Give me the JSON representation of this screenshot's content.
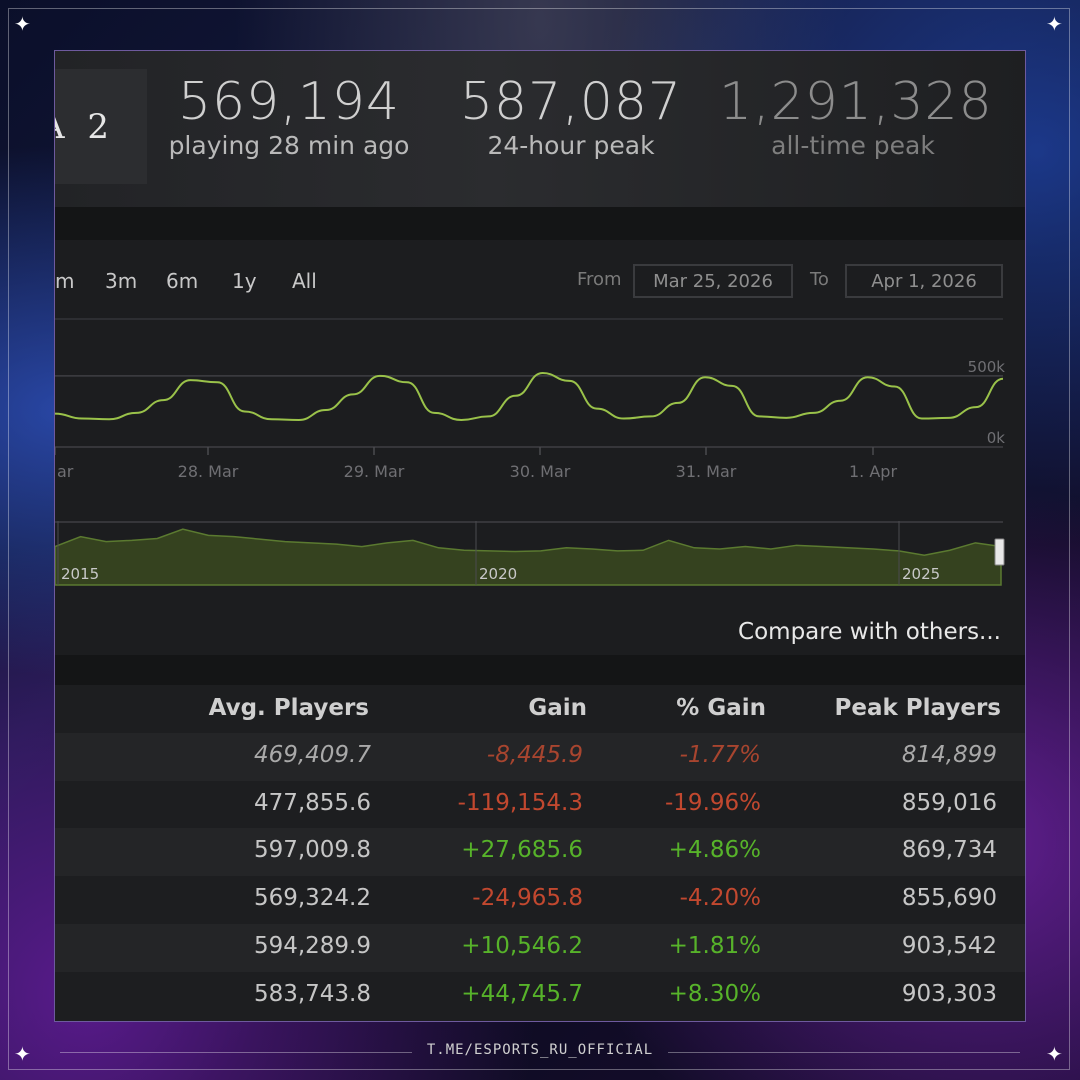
{
  "header": {
    "game_logo_text": "A 2",
    "stats": [
      {
        "value": "569,194",
        "label": "playing 28 min ago"
      },
      {
        "value": "587,087",
        "label": "24-hour peak"
      },
      {
        "value": "1,291,328",
        "label": "all-time peak"
      }
    ]
  },
  "chart_controls": {
    "zoom_options": [
      "m",
      "3m",
      "6m",
      "1y",
      "All"
    ],
    "from_label": "From",
    "from_date": "Mar 25, 2026",
    "to_label": "To",
    "to_date": "Apr 1, 2026"
  },
  "chart_data": [
    {
      "type": "line",
      "series": [
        {
          "values": [
            235000,
            200000,
            195000,
            240000,
            330000,
            470000,
            455000,
            250000,
            195000,
            190000,
            260000,
            370000,
            500000,
            455000,
            240000,
            190000,
            215000,
            360000,
            520000,
            465000,
            270000,
            200000,
            215000,
            310000,
            490000,
            430000,
            215000,
            205000,
            240000,
            325000,
            490000,
            425000,
            200000,
            205000,
            280000,
            480000
          ]
        }
      ],
      "x_tick_labels": [
        "ar",
        "28. Mar",
        "29. Mar",
        "30. Mar",
        "31. Mar",
        "1. Apr"
      ],
      "y_tick_labels": [
        "0k",
        "500k"
      ],
      "ylim": [
        0,
        900000
      ],
      "color": "#9ac24a",
      "grid": true
    },
    {
      "type": "area",
      "series": [
        {
          "values": [
            0.62,
            0.78,
            0.7,
            0.72,
            0.75,
            0.9,
            0.8,
            0.78,
            0.74,
            0.7,
            0.68,
            0.66,
            0.62,
            0.68,
            0.72,
            0.6,
            0.56,
            0.55,
            0.54,
            0.55,
            0.6,
            0.58,
            0.55,
            0.56,
            0.72,
            0.6,
            0.58,
            0.62,
            0.58,
            0.64,
            0.62,
            0.6,
            0.58,
            0.55,
            0.48,
            0.56,
            0.68,
            0.62
          ]
        }
      ],
      "x_tick_labels": [
        "2015",
        "2020",
        "2025"
      ],
      "color": "#5b7a30"
    }
  ],
  "compare_link": "Compare with others...",
  "table": {
    "columns": [
      "Avg. Players",
      "Gain",
      "% Gain",
      "Peak Players"
    ],
    "rows": [
      {
        "avg": "469,409.7",
        "gain": "-8,445.9",
        "pct": "-1.77%",
        "peak": "814,899",
        "gain_dir": "neg",
        "current": true
      },
      {
        "avg": "477,855.6",
        "gain": "-119,154.3",
        "pct": "-19.96%",
        "peak": "859,016",
        "gain_dir": "neg",
        "current": false
      },
      {
        "avg": "597,009.8",
        "gain": "+27,685.6",
        "pct": "+4.86%",
        "peak": "869,734",
        "gain_dir": "pos",
        "current": false
      },
      {
        "avg": "569,324.2",
        "gain": "-24,965.8",
        "pct": "-4.20%",
        "peak": "855,690",
        "gain_dir": "neg",
        "current": false
      },
      {
        "avg": "594,289.9",
        "gain": "+10,546.2",
        "pct": "+1.81%",
        "peak": "903,542",
        "gain_dir": "pos",
        "current": false
      },
      {
        "avg": "583,743.8",
        "gain": "+44,745.7",
        "pct": "+8.30%",
        "peak": "903,303",
        "gain_dir": "pos",
        "current": false
      }
    ]
  },
  "footer": {
    "text": "T.ME/ESPORTS_RU_OFFICIAL"
  },
  "colors": {
    "positive": "#57b32a",
    "negative": "#c2482f",
    "line": "#9ac24a",
    "accent_frame": "#6e5a9e"
  }
}
